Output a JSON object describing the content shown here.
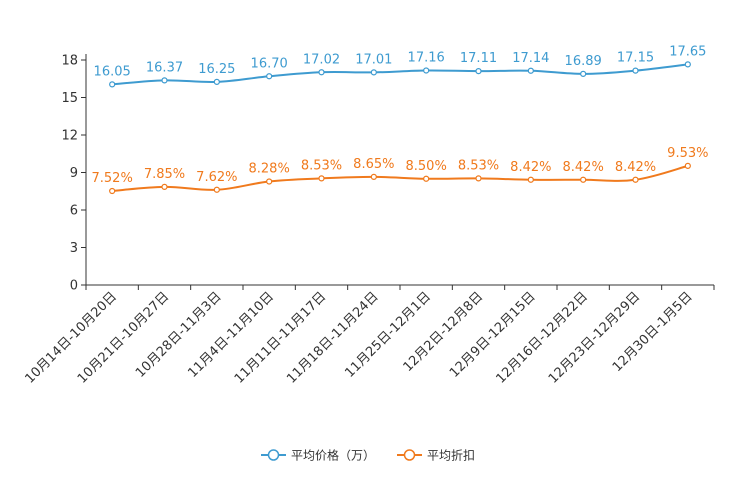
{
  "chart_data": {
    "type": "line",
    "title": "",
    "xlabel": "",
    "ylabel": "",
    "ylim": [
      0,
      18
    ],
    "yticks": [
      0,
      3,
      6,
      9,
      12,
      15,
      18
    ],
    "grid": false,
    "legend_position": "bottom-center",
    "categories": [
      "10月14日-10月20日",
      "10月21日-10月27日",
      "10月28日-11月3日",
      "11月4日-11月10日",
      "11月11日-11月17日",
      "11月18日-11月24日",
      "11月25日-12月1日",
      "12月2日-12月8日",
      "12月9日-12月15日",
      "12月16日-12月22日",
      "12月23日-12月29日",
      "12月30日-1月5日"
    ],
    "series": [
      {
        "name": "平均价格（万）",
        "color": "#3e9bd0",
        "values": [
          16.05,
          16.37,
          16.25,
          16.7,
          17.02,
          17.01,
          17.16,
          17.11,
          17.14,
          16.89,
          17.15,
          17.65
        ],
        "labels": [
          "16.05",
          "16.37",
          "16.25",
          "16.70",
          "17.02",
          "17.01",
          "17.16",
          "17.11",
          "17.14",
          "16.89",
          "17.15",
          "17.65"
        ]
      },
      {
        "name": "平均折扣",
        "color": "#f07a1d",
        "values": [
          7.52,
          7.85,
          7.62,
          8.28,
          8.53,
          8.65,
          8.5,
          8.53,
          8.42,
          8.42,
          8.42,
          9.53
        ],
        "labels": [
          "7.52%",
          "7.85%",
          "7.62%",
          "8.28%",
          "8.53%",
          "8.65%",
          "8.50%",
          "8.53%",
          "8.42%",
          "8.42%",
          "8.42%",
          "9.53%"
        ]
      }
    ]
  }
}
